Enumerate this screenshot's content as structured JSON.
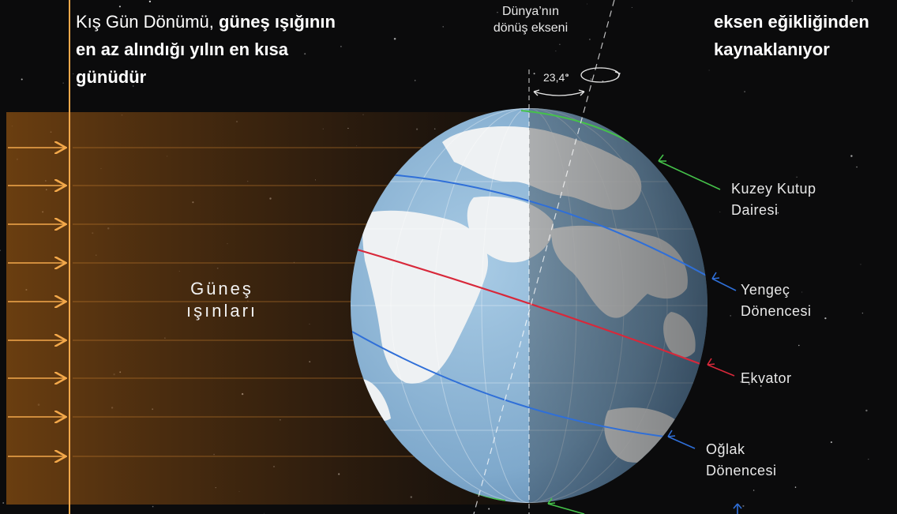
{
  "title_left": {
    "part1": "Kış Gün Dönümü, ",
    "part2_bold": "güneş ışığının en az alındığı yılın en kısa günüdür"
  },
  "title_right": {
    "line1": "eksen eğikliğinden",
    "line2": "kaynaklanıyor"
  },
  "axis": {
    "line1": "Dünya’nın",
    "line2": "dönüş ekseni",
    "angle": "23,4°"
  },
  "sun_rays": {
    "line1": "Güneş",
    "line2": "ışınları"
  },
  "circles": {
    "arctic": {
      "line1": "Kuzey Kutup",
      "line2": "Dairesi",
      "color": "#45c24a"
    },
    "cancer": {
      "line1": "Yengeç",
      "line2": "Dönencesi",
      "color": "#2f6fd8"
    },
    "equator": {
      "line1": "Ekvator",
      "color": "#d8283a"
    },
    "capricorn": {
      "line1": "Oğlak",
      "line2": "Dönencesi",
      "color": "#2f6fd8"
    }
  },
  "colors": {
    "background": "#0b0b0c",
    "sunlight": "#f3a84a",
    "ocean_day": "#8fb8d8",
    "ocean_night": "#3f6381",
    "land": "#e9ecef"
  }
}
